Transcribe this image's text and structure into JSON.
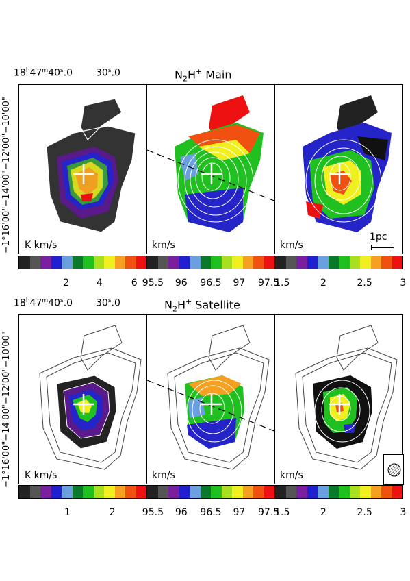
{
  "top": {
    "ra_label": "18h47m40s.0",
    "ra_label_2": "30s.0",
    "title": "N2H+ Main",
    "dec_label": "−1°16'00\"−14'00\"−12'00\"−10'00\"",
    "units": [
      "K km/s",
      "km/s",
      "km/s"
    ],
    "scalebar_label": "1pc",
    "cbar_ticks": [
      {
        "label": "2",
        "pos": 0.37
      },
      {
        "label": "4",
        "pos": 0.63
      },
      {
        "label": "6",
        "pos": 0.9
      }
    ],
    "cbar_ticks_2": [
      {
        "label": "95.5",
        "pos": 0.05
      },
      {
        "label": "96",
        "pos": 0.27
      },
      {
        "label": "96.5",
        "pos": 0.5
      },
      {
        "label": "97",
        "pos": 0.72
      },
      {
        "label": "97.5",
        "pos": 0.95
      }
    ],
    "cbar_ticks_3": [
      {
        "label": "1.5",
        "pos": 0.06
      },
      {
        "label": "2",
        "pos": 0.38
      },
      {
        "label": "2.5",
        "pos": 0.7
      },
      {
        "label": "3",
        "pos": 1.0
      }
    ]
  },
  "bottom": {
    "ra_label": "18h47m40s.0",
    "ra_label_2": "30s.0",
    "title": "N2H+ Satellite",
    "dec_label": "−1°16'00\"−14'00\"−12'00\"−10'00\"",
    "units": [
      "K km/s",
      "km/s",
      "km/s"
    ],
    "cbar_ticks": [
      {
        "label": "1",
        "pos": 0.38
      },
      {
        "label": "2",
        "pos": 0.73
      }
    ],
    "cbar_ticks_2": [
      {
        "label": "95.5",
        "pos": 0.05
      },
      {
        "label": "96",
        "pos": 0.27
      },
      {
        "label": "96.5",
        "pos": 0.5
      },
      {
        "label": "97",
        "pos": 0.72
      },
      {
        "label": "97.5",
        "pos": 0.95
      }
    ],
    "cbar_ticks_3": [
      {
        "label": "1.5",
        "pos": 0.06
      },
      {
        "label": "2",
        "pos": 0.38
      },
      {
        "label": "2.5",
        "pos": 0.7
      },
      {
        "label": "3",
        "pos": 1.0
      }
    ]
  },
  "colorbar_colors": [
    "#222222",
    "#555555",
    "#7a1fa0",
    "#2020d0",
    "#6aa0e0",
    "#0a7a2a",
    "#20c020",
    "#a8e020",
    "#f0f020",
    "#f5a020",
    "#f05010",
    "#ee1111"
  ]
}
